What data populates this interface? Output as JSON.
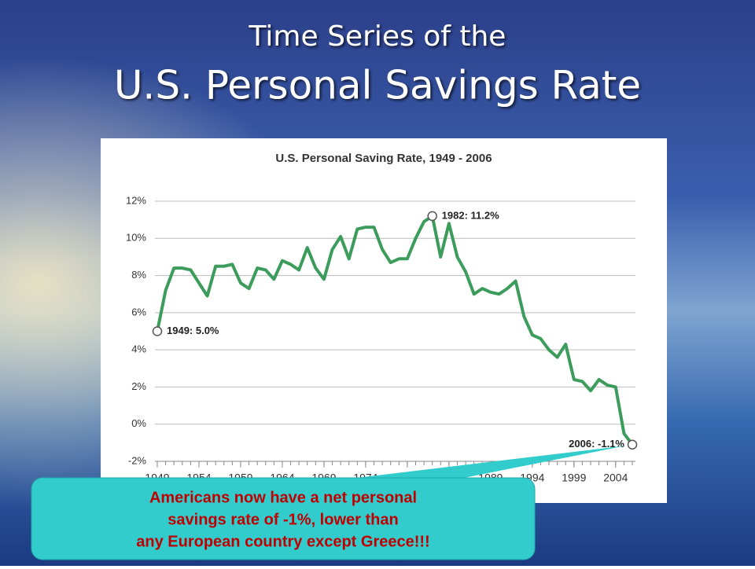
{
  "slide": {
    "title_line1": "Time Series of the",
    "title_line2": "U.S. Personal Savings Rate"
  },
  "chart_data": {
    "type": "line",
    "title": "U.S. Personal Saving Rate, 1949 - 2006",
    "x": [
      1949,
      1950,
      1951,
      1952,
      1953,
      1954,
      1955,
      1956,
      1957,
      1958,
      1959,
      1960,
      1961,
      1962,
      1963,
      1964,
      1965,
      1966,
      1967,
      1968,
      1969,
      1970,
      1971,
      1972,
      1973,
      1974,
      1975,
      1976,
      1977,
      1978,
      1979,
      1980,
      1981,
      1982,
      1983,
      1984,
      1985,
      1986,
      1987,
      1988,
      1989,
      1990,
      1991,
      1992,
      1993,
      1994,
      1995,
      1996,
      1997,
      1998,
      1999,
      2000,
      2001,
      2002,
      2003,
      2004,
      2005,
      2006
    ],
    "values": [
      5.0,
      7.2,
      8.4,
      8.4,
      8.3,
      7.6,
      6.9,
      8.5,
      8.5,
      8.6,
      7.6,
      7.3,
      8.4,
      8.3,
      7.8,
      8.8,
      8.6,
      8.3,
      9.5,
      8.4,
      7.8,
      9.4,
      10.1,
      8.9,
      10.5,
      10.6,
      10.6,
      9.4,
      8.7,
      8.9,
      8.9,
      10.0,
      10.9,
      11.2,
      9.0,
      10.8,
      9.0,
      8.2,
      7.0,
      7.3,
      7.1,
      7.0,
      7.3,
      7.7,
      5.8,
      4.8,
      4.6,
      4.0,
      3.6,
      4.3,
      2.4,
      2.3,
      1.8,
      2.4,
      2.1,
      2.0,
      -0.5,
      -1.1
    ],
    "color": "#3c9c5c",
    "xlim": [
      1949,
      2006
    ],
    "xticks": [
      1949,
      1954,
      1959,
      1964,
      1969,
      1974,
      1979,
      1984,
      1989,
      1994,
      1999,
      2004
    ],
    "ylim": [
      -2,
      12
    ],
    "yticks": [
      {
        "value": -2,
        "label": "-2%"
      },
      {
        "value": 0,
        "label": "0%"
      },
      {
        "value": 2,
        "label": "2%"
      },
      {
        "value": 4,
        "label": "4%"
      },
      {
        "value": 6,
        "label": "6%"
      },
      {
        "value": 8,
        "label": "8%"
      },
      {
        "value": 10,
        "label": "10%"
      },
      {
        "value": 12,
        "label": "12%"
      }
    ],
    "grid": true,
    "annotations": [
      {
        "text": "1949: 5.0%",
        "x": 1949,
        "y": 5.0
      },
      {
        "text": "1982: 11.2%",
        "x": 1982,
        "y": 11.2
      },
      {
        "text": "2006: -1.1%",
        "x": 2006,
        "y": -1.1
      }
    ]
  },
  "callout": {
    "lines": [
      "Americans now have a net personal",
      "savings rate of -1%, lower than",
      "any European country except Greece!!!"
    ]
  }
}
